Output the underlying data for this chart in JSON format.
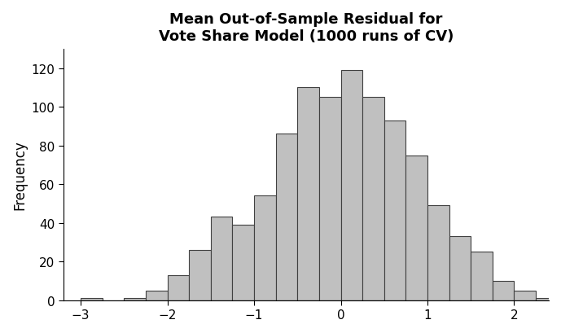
{
  "title_line1": "Mean Out-of-Sample Residual for",
  "title_line2": "Vote Share Model (1000 runs of CV)",
  "ylabel": "Frequency",
  "bar_color": "#c0c0c0",
  "bar_edge_color": "#404040",
  "bar_edge_width": 0.8,
  "xlim": [
    -3.2,
    2.4
  ],
  "ylim": [
    0,
    130
  ],
  "yticks": [
    0,
    20,
    40,
    60,
    80,
    100,
    120
  ],
  "xticks": [
    -3,
    -2,
    -1,
    0,
    1,
    2
  ],
  "bin_edges": [
    -3.0,
    -2.75,
    -2.5,
    -2.25,
    -2.0,
    -1.75,
    -1.5,
    -1.25,
    -1.0,
    -0.75,
    -0.5,
    -0.25,
    0.0,
    0.25,
    0.5,
    0.75,
    1.0,
    1.25,
    1.5,
    1.75,
    2.0,
    2.25,
    2.5
  ],
  "frequencies": [
    1,
    0,
    1,
    5,
    13,
    26,
    43,
    39,
    54,
    86,
    110,
    105,
    119,
    105,
    93,
    75,
    49,
    33,
    25,
    10,
    5,
    1
  ],
  "background_color": "#ffffff",
  "title_fontsize": 13,
  "axis_fontsize": 12,
  "tick_fontsize": 11
}
